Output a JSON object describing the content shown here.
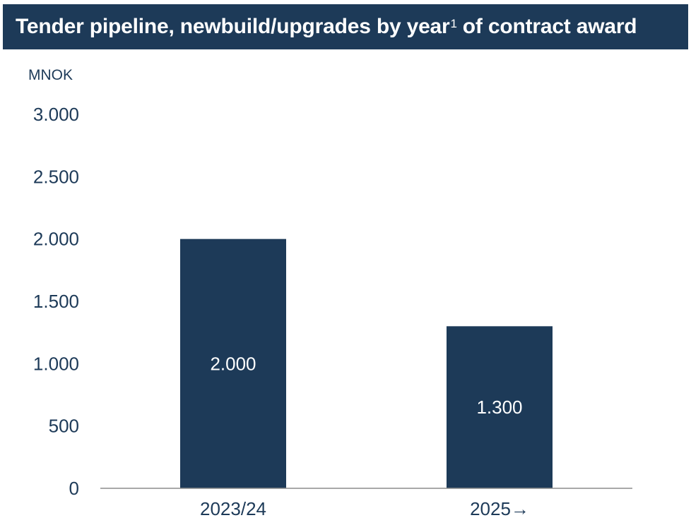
{
  "header": {
    "title_main": "Tender pipeline, newbuild/upgrades by year",
    "title_sup": "1",
    "title_tail": "of contract award"
  },
  "colors": {
    "header_bg": "#1d3a58",
    "bar": "#1d3a58",
    "axis_text": "#1d3a58",
    "baseline": "#8c8c8c"
  },
  "chart_data": {
    "type": "bar",
    "unit_label": "MNOK",
    "categories": [
      "2023/24",
      "2025→"
    ],
    "values": [
      2000,
      1300
    ],
    "value_labels": [
      "2.000",
      "1.300"
    ],
    "yticks": [
      {
        "value": 0,
        "label": "0"
      },
      {
        "value": 500,
        "label": "500"
      },
      {
        "value": 1000,
        "label": "1.000"
      },
      {
        "value": 1500,
        "label": "1.500"
      },
      {
        "value": 2000,
        "label": "2.000"
      },
      {
        "value": 2500,
        "label": "2.500"
      },
      {
        "value": 3000,
        "label": "3.000"
      }
    ],
    "ylim": [
      0,
      3000
    ],
    "grid": false,
    "legend": "none"
  }
}
